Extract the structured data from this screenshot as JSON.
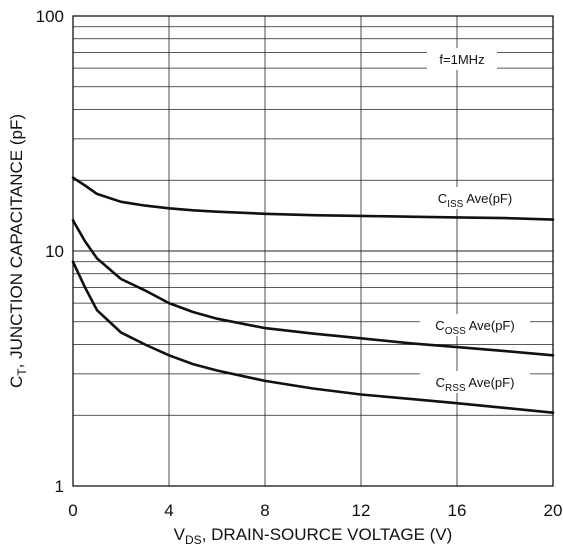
{
  "chart_data": {
    "type": "line",
    "title": "",
    "xlabel": "V",
    "xlabel_sub": "DS",
    "xlabel_rest": ", DRAIN-SOURCE VOLTAGE (V)",
    "ylabel": "C",
    "ylabel_sub": "T",
    "ylabel_rest": ", JUNCTION CAPACITANCE (pF)",
    "xlim": [
      0,
      20
    ],
    "ylim": [
      1,
      100
    ],
    "yscale": "log",
    "grid": true,
    "x_ticks": [
      "0",
      "4",
      "8",
      "12",
      "16",
      "20"
    ],
    "y_ticks": [
      "1",
      "10",
      "100"
    ],
    "annotation": "f=1MHz",
    "series": [
      {
        "name": "C",
        "name_sub": "ISS",
        "name_rest": " Ave(pF)",
        "x": [
          0,
          0.5,
          1,
          2,
          3,
          4,
          5,
          6,
          8,
          10,
          12,
          14,
          16,
          18,
          20
        ],
        "y": [
          20.5,
          19.0,
          17.5,
          16.2,
          15.6,
          15.2,
          14.9,
          14.7,
          14.4,
          14.2,
          14.1,
          14.0,
          13.9,
          13.8,
          13.6
        ]
      },
      {
        "name": "C",
        "name_sub": "OSS",
        "name_rest": " Ave(pF)",
        "x": [
          0,
          0.5,
          1,
          2,
          3,
          4,
          5,
          6,
          8,
          10,
          12,
          14,
          16,
          18,
          20
        ],
        "y": [
          13.5,
          11.0,
          9.3,
          7.6,
          6.8,
          6.0,
          5.5,
          5.15,
          4.7,
          4.45,
          4.25,
          4.05,
          3.9,
          3.75,
          3.6
        ]
      },
      {
        "name": "C",
        "name_sub": "RSS",
        "name_rest": " Ave(pF)",
        "x": [
          0,
          0.5,
          1,
          2,
          3,
          4,
          5,
          6,
          8,
          10,
          12,
          14,
          16,
          18,
          20
        ],
        "y": [
          9.0,
          7.0,
          5.6,
          4.5,
          4.0,
          3.6,
          3.3,
          3.1,
          2.8,
          2.6,
          2.45,
          2.35,
          2.25,
          2.15,
          2.05
        ]
      }
    ]
  }
}
